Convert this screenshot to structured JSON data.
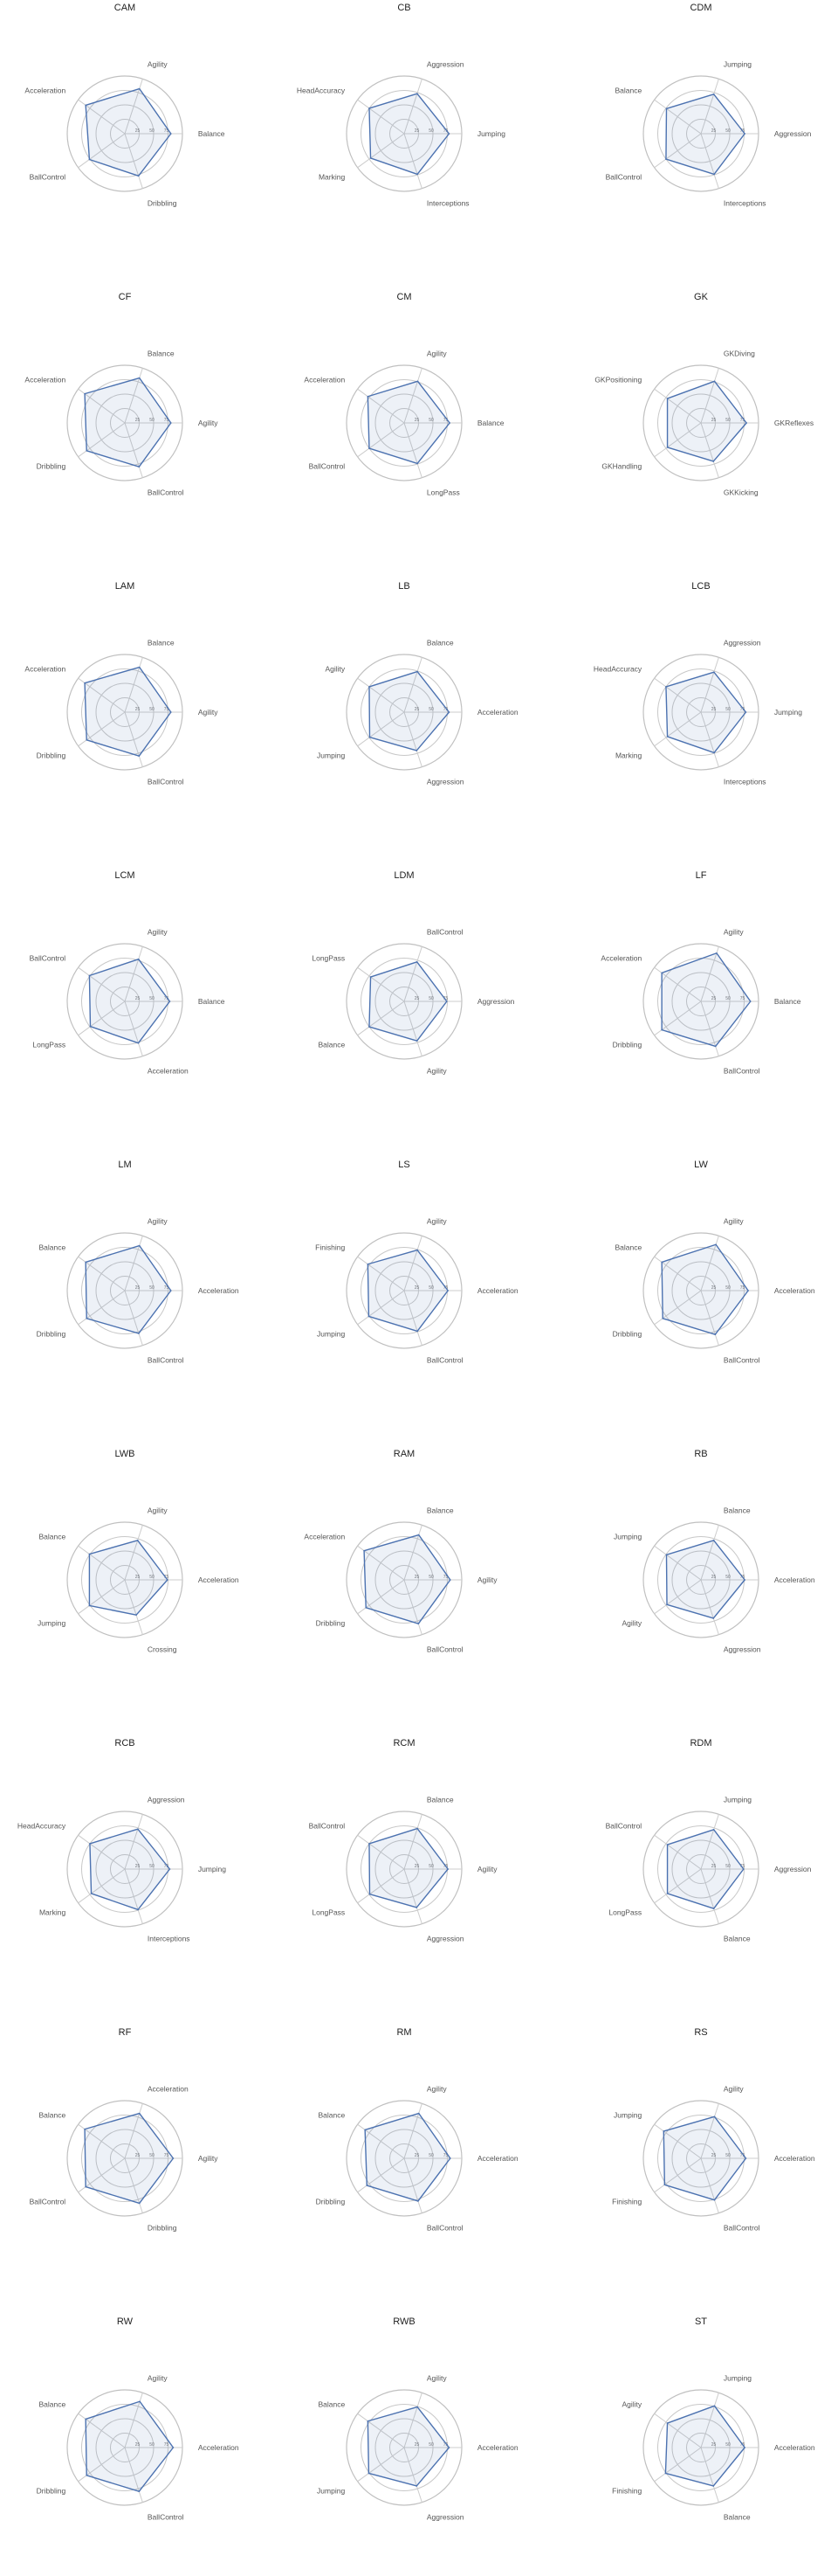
{
  "chart_data": [
    {
      "type": "radar",
      "title": "CAM",
      "axes": [
        "Balance",
        "Agility",
        "Acceleration",
        "BallControl",
        "Dribbling"
      ],
      "values": [
        80,
        82,
        84,
        76,
        77
      ],
      "ticks": [
        "25",
        "50",
        "75"
      ],
      "rmax": 100
    },
    {
      "type": "radar",
      "title": "CB",
      "axes": [
        "Jumping",
        "Aggression",
        "HeadAccuracy",
        "Marking",
        "Interceptions"
      ],
      "values": [
        78,
        73,
        75,
        72,
        74
      ],
      "ticks": [
        "25",
        "50",
        "75"
      ],
      "rmax": 100
    },
    {
      "type": "radar",
      "title": "CDM",
      "axes": [
        "Aggression",
        "Jumping",
        "Balance",
        "BallControl",
        "Interceptions"
      ],
      "values": [
        76,
        72,
        74,
        75,
        74
      ],
      "ticks": [
        "25",
        "50",
        "75"
      ],
      "rmax": 100
    },
    {
      "type": "radar",
      "title": "CF",
      "axes": [
        "Agility",
        "Balance",
        "Acceleration",
        "Dribbling",
        "BallControl"
      ],
      "values": [
        80,
        82,
        86,
        82,
        80
      ],
      "ticks": [
        "25",
        "50",
        "75"
      ],
      "rmax": 100
    },
    {
      "type": "radar",
      "title": "CM",
      "axes": [
        "Balance",
        "Agility",
        "Acceleration",
        "BallControl",
        "LongPass"
      ],
      "values": [
        79,
        76,
        78,
        75,
        74
      ],
      "ticks": [
        "25",
        "50",
        "75"
      ],
      "rmax": 100
    },
    {
      "type": "radar",
      "title": "GK",
      "axes": [
        "GKReflexes",
        "GKDiving",
        "GKPositioning",
        "GKHandling",
        "GKKicking"
      ],
      "values": [
        79,
        76,
        72,
        72,
        70
      ],
      "ticks": [
        "25",
        "50",
        "75"
      ],
      "rmax": 100
    },
    {
      "type": "radar",
      "title": "LAM",
      "axes": [
        "Agility",
        "Balance",
        "Acceleration",
        "Dribbling",
        "BallControl"
      ],
      "values": [
        80,
        82,
        86,
        82,
        80
      ],
      "ticks": [
        "25",
        "50",
        "75"
      ],
      "rmax": 100
    },
    {
      "type": "radar",
      "title": "LB",
      "axes": [
        "Acceleration",
        "Balance",
        "Agility",
        "Jumping",
        "Aggression"
      ],
      "values": [
        78,
        74,
        75,
        74,
        70
      ],
      "ticks": [
        "25",
        "50",
        "75"
      ],
      "rmax": 100
    },
    {
      "type": "radar",
      "title": "LCB",
      "axes": [
        "Jumping",
        "Aggression",
        "HeadAccuracy",
        "Marking",
        "Interceptions"
      ],
      "values": [
        78,
        73,
        75,
        72,
        74
      ],
      "ticks": [
        "25",
        "50",
        "75"
      ],
      "rmax": 100
    },
    {
      "type": "radar",
      "title": "LCM",
      "axes": [
        "Balance",
        "Agility",
        "BallControl",
        "LongPass",
        "Acceleration"
      ],
      "values": [
        78,
        77,
        76,
        74,
        76
      ],
      "ticks": [
        "25",
        "50",
        "75"
      ],
      "rmax": 100
    },
    {
      "type": "radar",
      "title": "LDM",
      "axes": [
        "Aggression",
        "BallControl",
        "LongPass",
        "Balance",
        "Agility"
      ],
      "values": [
        74,
        72,
        72,
        75,
        72
      ],
      "ticks": [
        "25",
        "50",
        "75"
      ],
      "rmax": 100
    },
    {
      "type": "radar",
      "title": "LF",
      "axes": [
        "Balance",
        "Agility",
        "Acceleration",
        "Dribbling",
        "BallControl"
      ],
      "values": [
        86,
        88,
        84,
        84,
        82
      ],
      "ticks": [
        "25",
        "50",
        "75"
      ],
      "rmax": 100
    },
    {
      "type": "radar",
      "title": "LM",
      "axes": [
        "Acceleration",
        "Agility",
        "Balance",
        "Dribbling",
        "BallControl"
      ],
      "values": [
        80,
        82,
        84,
        82,
        78
      ],
      "ticks": [
        "25",
        "50",
        "75"
      ],
      "rmax": 100
    },
    {
      "type": "radar",
      "title": "LS",
      "axes": [
        "Acceleration",
        "Agility",
        "Finishing",
        "Jumping",
        "BallControl"
      ],
      "values": [
        76,
        74,
        78,
        76,
        74
      ],
      "ticks": [
        "25",
        "50",
        "75"
      ],
      "rmax": 100
    },
    {
      "type": "radar",
      "title": "LW",
      "axes": [
        "Acceleration",
        "Agility",
        "Balance",
        "Dribbling",
        "BallControl"
      ],
      "values": [
        82,
        84,
        84,
        82,
        80
      ],
      "ticks": [
        "25",
        "50",
        "75"
      ],
      "rmax": 100
    },
    {
      "type": "radar",
      "title": "LWB",
      "axes": [
        "Acceleration",
        "Agility",
        "Balance",
        "Jumping",
        "Crossing"
      ],
      "values": [
        74,
        72,
        76,
        76,
        64
      ],
      "ticks": [
        "25",
        "50",
        "75"
      ],
      "rmax": 100
    },
    {
      "type": "radar",
      "title": "RAM",
      "axes": [
        "Agility",
        "Balance",
        "Acceleration",
        "Dribbling",
        "BallControl"
      ],
      "values": [
        80,
        82,
        86,
        82,
        80
      ],
      "ticks": [
        "25",
        "50",
        "75"
      ],
      "rmax": 100
    },
    {
      "type": "radar",
      "title": "RB",
      "axes": [
        "Acceleration",
        "Balance",
        "Jumping",
        "Agility",
        "Aggression"
      ],
      "values": [
        76,
        72,
        74,
        73,
        70
      ],
      "ticks": [
        "25",
        "50",
        "75"
      ],
      "rmax": 100
    },
    {
      "type": "radar",
      "title": "RCB",
      "axes": [
        "Jumping",
        "Aggression",
        "HeadAccuracy",
        "Marking",
        "Interceptions"
      ],
      "values": [
        78,
        73,
        75,
        72,
        74
      ],
      "ticks": [
        "25",
        "50",
        "75"
      ],
      "rmax": 100
    },
    {
      "type": "radar",
      "title": "RCM",
      "axes": [
        "Agility",
        "Balance",
        "BallControl",
        "LongPass",
        "Aggression"
      ],
      "values": [
        76,
        74,
        75,
        74,
        70
      ],
      "ticks": [
        "25",
        "50",
        "75"
      ],
      "rmax": 100
    },
    {
      "type": "radar",
      "title": "RDM",
      "axes": [
        "Aggression",
        "Jumping",
        "BallControl",
        "LongPass",
        "Balance"
      ],
      "values": [
        74,
        72,
        72,
        72,
        72
      ],
      "ticks": [
        "25",
        "50",
        "75"
      ],
      "rmax": 100
    },
    {
      "type": "radar",
      "title": "RF",
      "axes": [
        "Agility",
        "Acceleration",
        "Balance",
        "BallControl",
        "Dribbling"
      ],
      "values": [
        84,
        82,
        86,
        84,
        82
      ],
      "ticks": [
        "25",
        "50",
        "75"
      ],
      "rmax": 100
    },
    {
      "type": "radar",
      "title": "RM",
      "axes": [
        "Acceleration",
        "Agility",
        "Balance",
        "Dribbling",
        "BallControl"
      ],
      "values": [
        80,
        82,
        84,
        80,
        78
      ],
      "ticks": [
        "25",
        "50",
        "75"
      ],
      "rmax": 100
    },
    {
      "type": "radar",
      "title": "RS",
      "axes": [
        "Acceleration",
        "Agility",
        "Jumping",
        "Finishing",
        "BallControl"
      ],
      "values": [
        78,
        76,
        80,
        78,
        76
      ],
      "ticks": [
        "25",
        "50",
        "75"
      ],
      "rmax": 100
    },
    {
      "type": "radar",
      "title": "RW",
      "axes": [
        "Acceleration",
        "Agility",
        "Balance",
        "Dribbling",
        "BallControl"
      ],
      "values": [
        84,
        84,
        84,
        82,
        80
      ],
      "ticks": [
        "25",
        "50",
        "75"
      ],
      "rmax": 100
    },
    {
      "type": "radar",
      "title": "RWB",
      "axes": [
        "Acceleration",
        "Agility",
        "Balance",
        "Jumping",
        "Aggression"
      ],
      "values": [
        78,
        74,
        78,
        76,
        70
      ],
      "ticks": [
        "25",
        "50",
        "75"
      ],
      "rmax": 100
    },
    {
      "type": "radar",
      "title": "ST",
      "axes": [
        "Acceleration",
        "Jumping",
        "Agility",
        "Finishing",
        "Balance"
      ],
      "values": [
        76,
        76,
        72,
        76,
        70
      ],
      "ticks": [
        "25",
        "50",
        "75"
      ],
      "rmax": 100
    }
  ],
  "colors": {
    "series_line": "#4c72b0",
    "series_fill": "#4c72b0",
    "grid": "#c8c8c8",
    "text": "#555555",
    "title": "#222222"
  }
}
